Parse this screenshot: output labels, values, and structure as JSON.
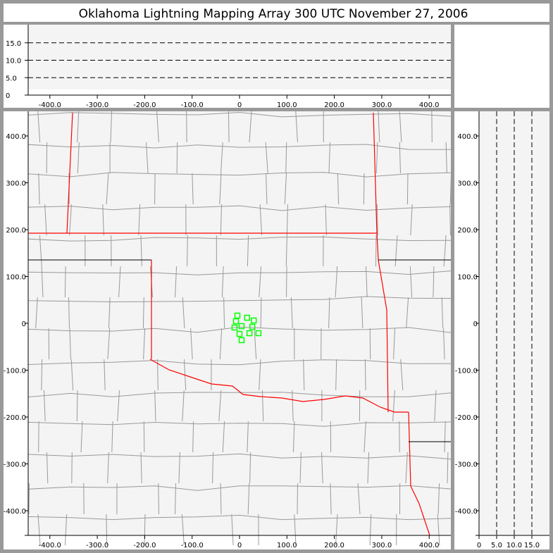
{
  "title": "Oklahoma Lightning Mapping Array   300 UTC  November 27, 2006",
  "colors": {
    "background": "#999999",
    "panel": "#ffffff",
    "plot": "#f4f4f4",
    "county": "#999999",
    "state": "#ff0000",
    "source": "#00ff00"
  },
  "chart_data": [
    {
      "type": "line",
      "panel": "altitude-vs-east-west",
      "xticks": [
        "-400.0",
        "-300.0",
        "-200.0",
        "-100.0",
        "0",
        "100.0",
        "200.0",
        "300.0",
        "400.0"
      ],
      "xtick_values": [
        -400,
        -300,
        -200,
        -100,
        0,
        100,
        200,
        300,
        400
      ],
      "yticks": [
        "0",
        "5.0",
        "10.0",
        "15.0"
      ],
      "ytick_values": [
        0,
        5,
        10,
        15
      ],
      "xlim": [
        -450,
        450
      ],
      "ylim": [
        0,
        19
      ],
      "grid": "dashed horizontal at 5, 10, 15",
      "points": []
    },
    {
      "type": "scatter",
      "panel": "plan-view-map",
      "xticks": [
        "-400.0",
        "-300.0",
        "-200.0",
        "-100.0",
        "0",
        "100.0",
        "200.0",
        "300.0",
        "400.0"
      ],
      "xtick_values": [
        -400,
        -300,
        -200,
        -100,
        0,
        100,
        200,
        300,
        400
      ],
      "yticks": [
        "400.0",
        "300.0",
        "200.0",
        "100.0",
        "0",
        "-100.0",
        "-200.0",
        "-300.0",
        "-400.0"
      ],
      "ytick_values": [
        400,
        300,
        200,
        100,
        0,
        -100,
        -200,
        -300,
        -400
      ],
      "xlim": [
        -450,
        450
      ],
      "ylim": [
        -450,
        450
      ],
      "marker": "open square",
      "points": [
        {
          "x": -4.5,
          "y": 16.5
        },
        {
          "x": 16,
          "y": 12
        },
        {
          "x": 30,
          "y": 6
        },
        {
          "x": -7.5,
          "y": 4.5
        },
        {
          "x": 4.5,
          "y": -6
        },
        {
          "x": -10.5,
          "y": -9
        },
        {
          "x": 27,
          "y": -7.5
        },
        {
          "x": 0,
          "y": -22.5
        },
        {
          "x": 21,
          "y": -21
        },
        {
          "x": 40,
          "y": -21
        },
        {
          "x": 4.5,
          "y": -36
        }
      ]
    },
    {
      "type": "line",
      "panel": "north-south-vs-altitude",
      "xticks": [
        "0",
        "5.0",
        "10.0",
        "15.0"
      ],
      "xtick_values": [
        0,
        5,
        10,
        15
      ],
      "yticks": [
        "400.0",
        "300.0",
        "200.0",
        "100.0",
        "0",
        "-100.0",
        "-200.0",
        "-300.0",
        "-400.0"
      ],
      "ytick_values": [
        400,
        300,
        200,
        100,
        0,
        -100,
        -200,
        -300,
        -400
      ],
      "xlim": [
        0,
        19
      ],
      "ylim": [
        -450,
        450
      ],
      "grid": "dashed vertical at 5, 10, 15",
      "points": []
    }
  ]
}
